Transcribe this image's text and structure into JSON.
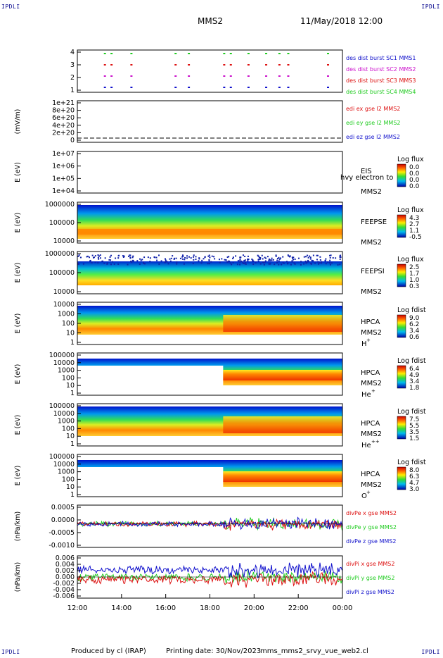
{
  "header": {
    "corner_label": "IPDLI",
    "mission": "MMS2",
    "datetime": "11/May/2018 12:00"
  },
  "footer": {
    "credit": "Produced by cl (IRAP)",
    "printing": "Printing date: 30/Nov/2023",
    "filename": "mms_mms2_srvy_vue_web2.cl"
  },
  "colors": {
    "red": "#dd1111",
    "green": "#22cc22",
    "blue": "#1111cc",
    "magenta": "#cc11cc"
  },
  "chart_data": [
    {
      "type": "scatter",
      "id": "burst",
      "ylabel": "",
      "yticks": [
        "4",
        "3",
        "2",
        "1"
      ],
      "legend": [
        {
          "text": "des dist burst SC1 MMS1",
          "color": "blue"
        },
        {
          "text": "des dist burst SC2 MMS2",
          "color": "magenta"
        },
        {
          "text": "des dist burst SC3 MMS3",
          "color": "red"
        },
        {
          "text": "des dist burst SC4 MMS4",
          "color": "green"
        }
      ],
      "series": [
        {
          "sc": 4,
          "color": "green",
          "hours": [
            13.2,
            13.5,
            14.4,
            16.4,
            17.0,
            18.6,
            18.9,
            19.7,
            20.5,
            21.1,
            21.5,
            23.3
          ]
        },
        {
          "sc": 3,
          "color": "red",
          "hours": [
            13.2,
            13.5,
            14.4,
            16.4,
            17.0,
            18.6,
            18.9,
            19.7,
            20.5,
            21.1,
            21.5,
            23.3
          ]
        },
        {
          "sc": 2,
          "color": "magenta",
          "hours": [
            13.2,
            13.5,
            14.4,
            16.4,
            17.0,
            18.6,
            18.9,
            19.7,
            20.5,
            21.1,
            21.5,
            23.3
          ]
        },
        {
          "sc": 1,
          "color": "blue",
          "hours": [
            13.2,
            13.5,
            14.4,
            16.4,
            17.0,
            18.6,
            18.9,
            19.7,
            20.5,
            21.1,
            21.5,
            23.3
          ]
        }
      ]
    },
    {
      "type": "line",
      "id": "edi",
      "ylabel": "(mV/m)",
      "yticks": [
        "1e+21",
        "8e+20",
        "6e+20",
        "4e+20",
        "2e+20",
        "0"
      ],
      "legend": [
        {
          "text": "edi ex gse l2 MMS2",
          "color": "red"
        },
        {
          "text": "edi ey gse l2 MMS2",
          "color": "green"
        },
        {
          "text": "edi ez gse l2 MMS2",
          "color": "blue"
        }
      ]
    },
    {
      "type": "heatmap",
      "id": "eis",
      "ylabel": "E (eV)",
      "yticks": [
        "1e+07",
        "1e+06",
        "1e+05",
        "1e+04"
      ],
      "labels": [
        "EIS",
        "MMS2"
      ],
      "overlay_text": "hvy electron to",
      "colorbar_title": "Log flux",
      "colorbar_ticks": [
        "0.0",
        "0.0",
        "0.0",
        "0.0"
      ]
    },
    {
      "type": "heatmap",
      "id": "feepse",
      "ylabel": "E (eV)",
      "yticks": [
        "1000000",
        "100000",
        "10000"
      ],
      "labels": [
        "FEEPSE",
        "MMS2"
      ],
      "colorbar_title": "Log flux",
      "colorbar_ticks": [
        "4.3",
        "2.7",
        "1.1",
        "-0.5"
      ]
    },
    {
      "type": "heatmap",
      "id": "feepsi",
      "ylabel": "E (eV)",
      "yticks": [
        "1000000",
        "100000",
        "10000"
      ],
      "labels": [
        "FEEPSI",
        "MMS2"
      ],
      "colorbar_title": "Log flux",
      "colorbar_ticks": [
        "2.5",
        "1.7",
        "1.0",
        "0.3"
      ]
    },
    {
      "type": "heatmap",
      "id": "hpca_h",
      "ylabel": "E (eV)",
      "yticks": [
        "10000",
        "1000",
        "100",
        "10",
        "1"
      ],
      "labels": [
        "HPCA",
        "MMS2",
        "H",
        "+"
      ],
      "colorbar_title": "Log fdist",
      "colorbar_ticks": [
        "9.0",
        "6.2",
        "3.4",
        "0.6"
      ]
    },
    {
      "type": "heatmap",
      "id": "hpca_he",
      "ylabel": "E (eV)",
      "yticks": [
        "100000",
        "10000",
        "1000",
        "100",
        "10",
        "1"
      ],
      "labels": [
        "HPCA",
        "MMS2",
        "He",
        "+"
      ],
      "colorbar_title": "Log fdist",
      "colorbar_ticks": [
        "6.4",
        "4.9",
        "3.4",
        "1.8"
      ]
    },
    {
      "type": "heatmap",
      "id": "hpca_hepp",
      "ylabel": "E (eV)",
      "yticks": [
        "100000",
        "10000",
        "1000",
        "100",
        "10",
        "1"
      ],
      "labels": [
        "HPCA",
        "MMS2",
        "He",
        "++"
      ],
      "colorbar_title": "Log fdist",
      "colorbar_ticks": [
        "7.5",
        "5.5",
        "3.5",
        "1.5"
      ]
    },
    {
      "type": "heatmap",
      "id": "hpca_o",
      "ylabel": "E (eV)",
      "yticks": [
        "100000",
        "10000",
        "1000",
        "100",
        "10",
        "1"
      ],
      "labels": [
        "HPCA",
        "MMS2",
        "O",
        "+"
      ],
      "colorbar_title": "Log fdist",
      "colorbar_ticks": [
        "8.0",
        "6.3",
        "4.7",
        "3.0"
      ]
    },
    {
      "type": "line",
      "id": "divpe",
      "ylabel": "(nPa/km)",
      "yticks": [
        "0.0005",
        "0.0000",
        "-0.0005",
        "-0.0010"
      ],
      "ylim": [
        -0.001,
        0.0008
      ],
      "legend": [
        {
          "text": "divPe x gse MMS2",
          "color": "red"
        },
        {
          "text": "divPe y gse MMS2",
          "color": "green"
        },
        {
          "text": "divPe z gse MMS2",
          "color": "blue"
        }
      ]
    },
    {
      "type": "line",
      "id": "divpi",
      "ylabel": "(nPa/km)",
      "yticks": [
        "0.006",
        "0.004",
        "0.002",
        "0.000",
        "-0.002",
        "-0.004",
        "-0.006"
      ],
      "ylim": [
        -0.007,
        0.007
      ],
      "legend": [
        {
          "text": "divPi x gse MMS2",
          "color": "red"
        },
        {
          "text": "divPi y gse MMS2",
          "color": "green"
        },
        {
          "text": "divPi z gse MMS2",
          "color": "blue"
        }
      ]
    }
  ],
  "xaxis": {
    "ticks": [
      "12:00",
      "14:00",
      "16:00",
      "18:00",
      "20:00",
      "22:00",
      "00:00"
    ],
    "range_hours": [
      12,
      24
    ]
  }
}
